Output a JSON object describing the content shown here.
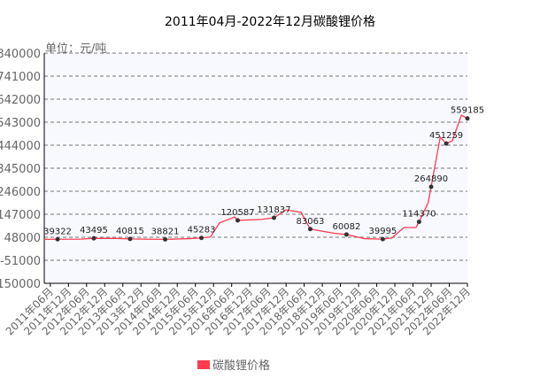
{
  "chart_data": {
    "type": "line",
    "title": "2011年04月-2022年12月碳酸锂价格",
    "unit_label": "单位：元/吨",
    "xlabel": "",
    "ylabel": "",
    "ylim": [
      -150000,
      840000
    ],
    "y_ticks": [
      "840000",
      "741000",
      "642000",
      "543000",
      "444000",
      "345000",
      "246000",
      "147000",
      "48000",
      "-51000",
      "-150000"
    ],
    "y_tick_values": [
      840000,
      741000,
      642000,
      543000,
      444000,
      345000,
      246000,
      147000,
      48000,
      -51000,
      -150000
    ],
    "x_range_months": [
      0,
      140
    ],
    "x_start": "2011年04月",
    "x_tick_labels": [
      "2011年06月",
      "2011年12月",
      "2012年06月",
      "2012年12月",
      "2013年06月",
      "2013年12月",
      "2014年06月",
      "2014年12月",
      "2015年06月",
      "2015年12月",
      "2016年06月",
      "2016年12月",
      "2017年06月",
      "2017年12月",
      "2018年06月",
      "2018年12月",
      "2019年06月",
      "2019年12月",
      "2020年06月",
      "2020年12月",
      "2021年06月",
      "2021年12月",
      "2022年06月",
      "2022年12月"
    ],
    "grid": true,
    "legend": {
      "position": "bottom-center",
      "entries": [
        "碳酸锂价格"
      ]
    },
    "series": [
      {
        "name": "碳酸锂价格",
        "color": "#ff3b50",
        "line_points": [
          [
            0,
            39000
          ],
          [
            4.4,
            39322
          ],
          [
            12,
            40000
          ],
          [
            16.4,
            43495
          ],
          [
            24,
            43000
          ],
          [
            28.4,
            40815
          ],
          [
            36,
            39500
          ],
          [
            40,
            38821
          ],
          [
            48,
            42000
          ],
          [
            52,
            45283
          ],
          [
            55,
            50000
          ],
          [
            58,
            110000
          ],
          [
            63,
            135000
          ],
          [
            64,
            120587
          ],
          [
            72,
            125000
          ],
          [
            76,
            131837
          ],
          [
            80,
            166000
          ],
          [
            85,
            155000
          ],
          [
            88,
            83063
          ],
          [
            96,
            65000
          ],
          [
            100,
            60082
          ],
          [
            106,
            42000
          ],
          [
            112,
            39995
          ],
          [
            115,
            45000
          ],
          [
            119,
            90000
          ],
          [
            123,
            90000
          ],
          [
            124,
            114370
          ],
          [
            127,
            196000
          ],
          [
            128,
            264890
          ],
          [
            131,
            478000
          ],
          [
            133,
            451259
          ],
          [
            135,
            463000
          ],
          [
            138,
            573000
          ],
          [
            140,
            559185
          ]
        ],
        "marked_points": [
          {
            "month": 4.4,
            "value": 39322,
            "label": "39322"
          },
          {
            "month": 16.4,
            "value": 43495,
            "label": "43495"
          },
          {
            "month": 28.4,
            "value": 40815,
            "label": "40815"
          },
          {
            "month": 40,
            "value": 38821,
            "label": "38821"
          },
          {
            "month": 52,
            "value": 45283,
            "label": "45283"
          },
          {
            "month": 64,
            "value": 120587,
            "label": "120587"
          },
          {
            "month": 76,
            "value": 131837,
            "label": "131837"
          },
          {
            "month": 88,
            "value": 83063,
            "label": "83063"
          },
          {
            "month": 100,
            "value": 60082,
            "label": "60082"
          },
          {
            "month": 112,
            "value": 39995,
            "label": "39995"
          },
          {
            "month": 124,
            "value": 114370,
            "label": "114370"
          },
          {
            "month": 128,
            "value": 264890,
            "label": "264890"
          },
          {
            "month": 133,
            "value": 451259,
            "label": "451259"
          },
          {
            "month": 140,
            "value": 559185,
            "label": "559185"
          }
        ]
      }
    ]
  }
}
